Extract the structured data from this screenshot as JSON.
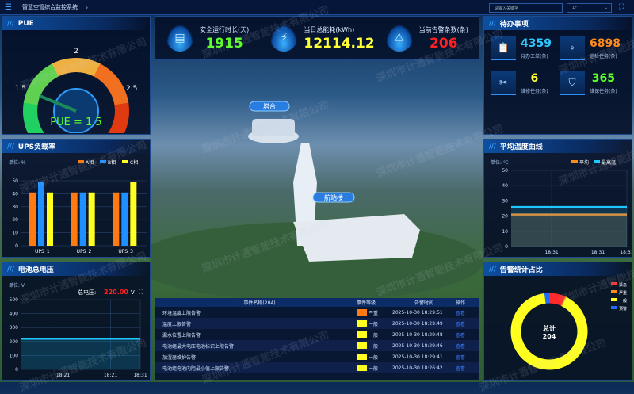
{
  "header": {
    "title": "智慧空管综合监控系统",
    "search_placeholder": "请输入关键字",
    "floor": "1F"
  },
  "pue": {
    "title": "PUE",
    "value": 1.5,
    "min": 1,
    "max": 3,
    "ticks": [
      "1",
      "1.5",
      "2",
      "2.5",
      "3"
    ],
    "label": "PUE = 1.5"
  },
  "stats": [
    {
      "label": "安全运行时长(天)",
      "value": "1915",
      "color": "#5cff2a",
      "icon": "monitor-chart-icon"
    },
    {
      "label": "当日总能耗(kWh)",
      "value": "12114.12",
      "color": "#ffff33",
      "icon": "lightning-icon"
    },
    {
      "label": "当前告警条数(条)",
      "value": "206",
      "color": "#ff2020",
      "icon": "warning-icon"
    }
  ],
  "todo": {
    "title": "待办事项",
    "items": [
      {
        "value": "4359",
        "label": "待办工单(条)",
        "color": "#2ec8ff",
        "icon": "work-order-icon"
      },
      {
        "value": "6898",
        "label": "巡检任务(条)",
        "color": "#ff8a1e",
        "icon": "location-pin-icon"
      },
      {
        "value": "6",
        "label": "维修任务(条)",
        "color": "#ffff33",
        "icon": "tools-icon"
      },
      {
        "value": "365",
        "label": "维保任务(条)",
        "color": "#5cff2a",
        "icon": "shield-check-icon"
      }
    ]
  },
  "scene": {
    "tower_label": "塔台",
    "terminal_label": "航站楼"
  },
  "watermark": "深圳市计通智能技术有限公司",
  "chart_data": [
    {
      "type": "bar",
      "title": "UPS负载率",
      "unit": "单位: %",
      "categories": [
        "UPS_1",
        "UPS_2",
        "UPS_3"
      ],
      "ylim": [
        0,
        50
      ],
      "yticks": [
        "0",
        "10",
        "20",
        "30",
        "40",
        "50"
      ],
      "series": [
        {
          "name": "A相",
          "color": "#ff7a10",
          "values": [
            41,
            41,
            41
          ]
        },
        {
          "name": "B相",
          "color": "#1e90ff",
          "values": [
            49,
            41,
            41
          ]
        },
        {
          "name": "C相",
          "color": "#ffff20",
          "values": [
            41,
            41,
            49
          ]
        }
      ],
      "legend": "top-right"
    },
    {
      "type": "area",
      "title": "电池总电压",
      "unit": "单位: V",
      "total_label": "总电压:",
      "total_value": "220.00",
      "total_unit": "V",
      "x": [
        "18:21",
        "18:21",
        "18:31"
      ],
      "ylim": [
        0,
        500
      ],
      "yticks": [
        "0",
        "100",
        "200",
        "300",
        "400",
        "500"
      ],
      "series": [
        {
          "color": "#1ec8ff",
          "values": [
            220,
            220,
            220
          ]
        }
      ]
    },
    {
      "type": "line",
      "title": "平均温度曲线",
      "unit": "单位: ℃",
      "x": [
        "18:31",
        "18:31",
        "18:31"
      ],
      "ylim": [
        0,
        50
      ],
      "yticks": [
        "0",
        "10",
        "20",
        "30",
        "40",
        "50"
      ],
      "series": [
        {
          "name": "平均",
          "color": "#ff8a1e",
          "values": [
            21,
            21,
            21
          ]
        },
        {
          "name": "最高温",
          "color": "#1ec8ff",
          "values": [
            26,
            26,
            26
          ]
        }
      ],
      "legend": "top-right"
    },
    {
      "type": "pie",
      "title": "告警统计占比",
      "center_label": "总计",
      "total": "204",
      "series": [
        {
          "name": "紧急",
          "color": "#ff2a2a",
          "value": 14
        },
        {
          "name": "严重",
          "color": "#ff8a1e",
          "value": 1
        },
        {
          "name": "一般",
          "color": "#ffff20",
          "value": 185
        },
        {
          "name": "预警",
          "color": "#1e6cff",
          "value": 4
        }
      ],
      "legend": "top-right"
    }
  ],
  "events": {
    "headers": [
      "事件名称(204)",
      "事件等级",
      "告警时间",
      "操作"
    ],
    "rows": [
      {
        "name": "环境温度上限告警",
        "level": "严重",
        "color": "#ff7a10",
        "time": "2025-10-30 18:29:51",
        "action": "查看"
      },
      {
        "name": "温度上限告警",
        "level": "一般",
        "color": "#ffff20",
        "time": "2025-10-30 18:29:49",
        "action": "查看"
      },
      {
        "name": "漏水位置上限告警",
        "level": "一般",
        "color": "#ffff20",
        "time": "2025-10-30 18:29:48",
        "action": "查看"
      },
      {
        "name": "电池组最大电压电池标识上限告警",
        "level": "一般",
        "color": "#ffff20",
        "time": "2025-10-30 18:29:46",
        "action": "查看"
      },
      {
        "name": "加湿器维护告警",
        "level": "一般",
        "color": "#ffff20",
        "time": "2025-10-30 18:29:41",
        "action": "查看"
      },
      {
        "name": "电池组电池内阻最小值上限告警",
        "level": "一般",
        "color": "#ffff20",
        "time": "2025-10-30 18:26:42",
        "action": "查看"
      }
    ]
  }
}
